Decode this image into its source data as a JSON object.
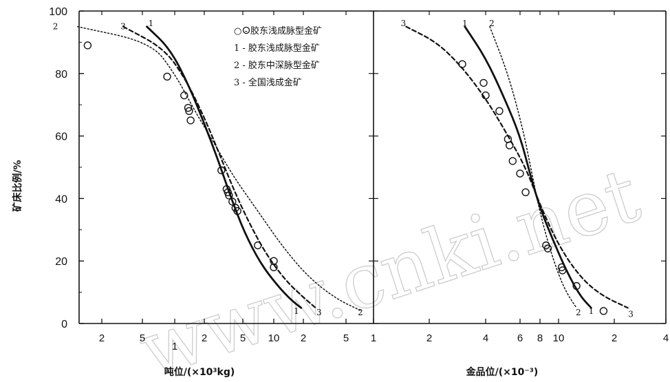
{
  "watermark": "www.cnki.net",
  "y_axis_label": "矿床比例/%",
  "y_ticks": [
    "0",
    "20",
    "40",
    "60",
    "80",
    "100"
  ],
  "legend": [
    {
      "marker": "circle",
      "text": "○ - 胶东浅成脉型金矿"
    },
    {
      "marker": "1",
      "text": "1 - 胶东浅成脉型金矿"
    },
    {
      "marker": "2",
      "text": "2 - 胶东中深脉型金矿"
    },
    {
      "marker": "3",
      "text": "3 - 全国浅成金矿"
    }
  ],
  "chart_data": [
    {
      "type": "scatter",
      "panel": "left",
      "xlabel": "吨位/(×10³kg)",
      "ylabel": "矿床比例/%",
      "x_scale": "log",
      "xlim": [
        0.3,
        80
      ],
      "ylim": [
        0,
        100
      ],
      "x_tick_labels": [
        "2",
        "5",
        "1",
        "2",
        "5",
        "10",
        "2",
        "5"
      ],
      "points": [
        {
          "x": 0.37,
          "y": 89
        },
        {
          "x": 0.85,
          "y": 79
        },
        {
          "x": 1.25,
          "y": 73
        },
        {
          "x": 1.37,
          "y": 69
        },
        {
          "x": 1.4,
          "y": 68
        },
        {
          "x": 1.45,
          "y": 65
        },
        {
          "x": 3.0,
          "y": 49
        },
        {
          "x": 3.4,
          "y": 43
        },
        {
          "x": 3.5,
          "y": 42
        },
        {
          "x": 3.6,
          "y": 41
        },
        {
          "x": 3.9,
          "y": 39
        },
        {
          "x": 4.2,
          "y": 37
        },
        {
          "x": 4.4,
          "y": 36
        },
        {
          "x": 7.0,
          "y": 25
        },
        {
          "x": 10.0,
          "y": 20
        },
        {
          "x": 10.0,
          "y": 18
        }
      ],
      "series": [
        {
          "name": "1",
          "style": "solid",
          "points": [
            [
              0.55,
              95
            ],
            [
              0.9,
              88
            ],
            [
              1.4,
              76
            ],
            [
              2.0,
              64
            ],
            [
              2.8,
              52
            ],
            [
              3.8,
              40
            ],
            [
              5.2,
              29
            ],
            [
              7.5,
              19
            ],
            [
              11,
              12
            ],
            [
              15,
              7.5
            ],
            [
              19,
              5
            ]
          ]
        },
        {
          "name": "2",
          "style": "dotted",
          "points": [
            [
              0.35,
              95
            ],
            [
              0.6,
              90
            ],
            [
              1.0,
              80
            ],
            [
              1.6,
              68
            ],
            [
              2.5,
              58
            ],
            [
              4.0,
              47
            ],
            [
              7.0,
              36
            ],
            [
              12,
              25
            ],
            [
              22,
              15
            ],
            [
              40,
              8
            ],
            [
              70,
              4
            ]
          ]
        },
        {
          "name": "3",
          "style": "dashed",
          "points": [
            [
              0.45,
              95
            ],
            [
              0.8,
              88
            ],
            [
              1.3,
              78
            ],
            [
              2.0,
              66
            ],
            [
              2.8,
              55
            ],
            [
              4.0,
              43
            ],
            [
              5.8,
              32
            ],
            [
              8.5,
              22
            ],
            [
              13,
              14
            ],
            [
              19,
              9
            ],
            [
              26,
              5
            ]
          ]
        }
      ],
      "curve_end_labels": [
        {
          "text": "2",
          "x": 0.31,
          "y": 95
        },
        {
          "text": "3",
          "x": 0.45,
          "y": 95
        },
        {
          "text": "1",
          "x": 0.6,
          "y": 96
        },
        {
          "text": "1",
          "x": 17,
          "y": 4
        },
        {
          "text": "3",
          "x": 28,
          "y": 3.5
        },
        {
          "text": "2",
          "x": 68,
          "y": 3.5
        }
      ]
    },
    {
      "type": "scatter",
      "panel": "right",
      "xlabel": "金品位/(×10⁻³)",
      "x_scale": "log",
      "xlim": [
        1.2,
        40
      ],
      "ylim": [
        0,
        100
      ],
      "x_tick_labels": [
        "1",
        "2",
        "4",
        "6",
        "8",
        "10",
        "2",
        "4"
      ],
      "points": [
        {
          "x": 3.0,
          "y": 83
        },
        {
          "x": 3.9,
          "y": 77
        },
        {
          "x": 4.0,
          "y": 73
        },
        {
          "x": 4.7,
          "y": 68
        },
        {
          "x": 5.2,
          "y": 59
        },
        {
          "x": 5.3,
          "y": 57
        },
        {
          "x": 5.5,
          "y": 52
        },
        {
          "x": 6.0,
          "y": 48
        },
        {
          "x": 6.5,
          "y": 42
        },
        {
          "x": 8.6,
          "y": 25
        },
        {
          "x": 8.8,
          "y": 24
        },
        {
          "x": 10.4,
          "y": 18
        },
        {
          "x": 10.5,
          "y": 17
        },
        {
          "x": 12.5,
          "y": 12
        },
        {
          "x": 17.5,
          "y": 4
        }
      ],
      "series": [
        {
          "name": "1",
          "style": "solid",
          "points": [
            [
              3.1,
              95
            ],
            [
              4.0,
              85
            ],
            [
              5.0,
              72
            ],
            [
              6.0,
              60
            ],
            [
              7.0,
              47
            ],
            [
              8.0,
              37
            ],
            [
              9.3,
              27
            ],
            [
              11,
              17
            ],
            [
              13,
              9
            ],
            [
              15,
              5
            ]
          ]
        },
        {
          "name": "2",
          "style": "dotted",
          "points": [
            [
              4.2,
              95
            ],
            [
              5.2,
              80
            ],
            [
              6.2,
              63
            ],
            [
              7.0,
              50
            ],
            [
              7.8,
              38
            ],
            [
              8.7,
              27
            ],
            [
              9.8,
              17
            ],
            [
              11,
              10
            ],
            [
              12.5,
              5
            ]
          ]
        },
        {
          "name": "3",
          "style": "dashed",
          "points": [
            [
              1.5,
              95
            ],
            [
              2.2,
              90
            ],
            [
              3.0,
              82
            ],
            [
              4.0,
              72
            ],
            [
              5.0,
              62
            ],
            [
              6.5,
              50
            ],
            [
              8.0,
              38
            ],
            [
              10,
              25
            ],
            [
              13,
              15
            ],
            [
              17,
              9
            ],
            [
              24,
              5
            ]
          ]
        }
      ],
      "curve_end_labels": [
        {
          "text": "3",
          "x": 1.45,
          "y": 96
        },
        {
          "text": "1",
          "x": 3.1,
          "y": 96
        },
        {
          "text": "2",
          "x": 4.3,
          "y": 96
        },
        {
          "text": "2",
          "x": 12.8,
          "y": 3.5
        },
        {
          "text": "1",
          "x": 15,
          "y": 4
        },
        {
          "text": "3",
          "x": 25,
          "y": 3
        }
      ]
    }
  ]
}
